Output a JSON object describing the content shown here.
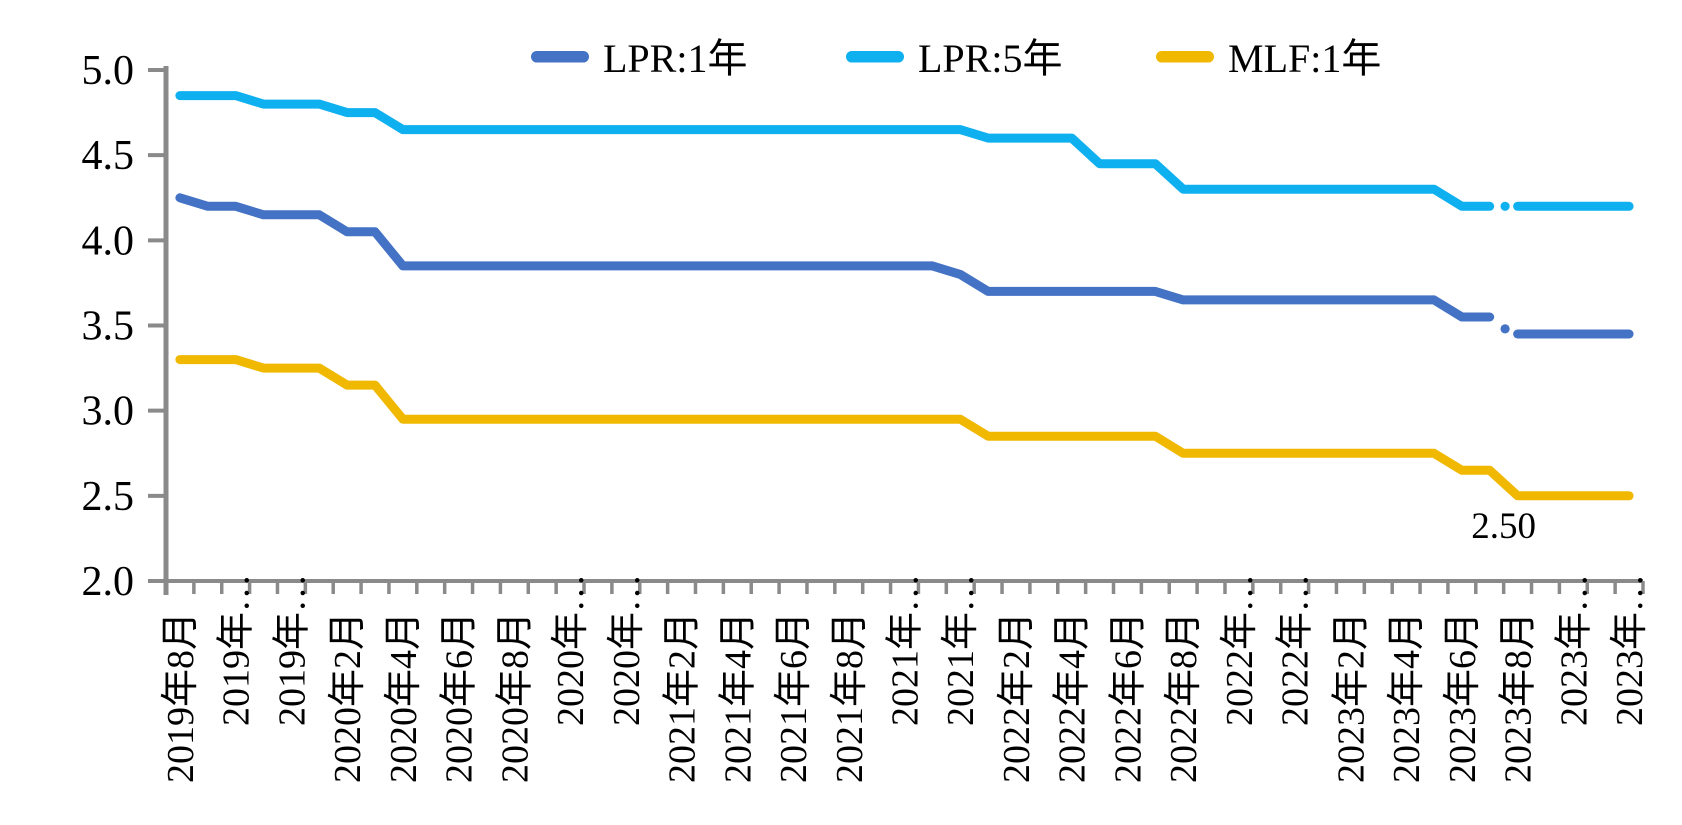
{
  "chart_data": {
    "type": "line",
    "title": "",
    "grid": "off",
    "legend_position": "top-center",
    "ylim": [
      2.0,
      5.0
    ],
    "y_step": 0.5,
    "y_tick_labels": [
      "5.0",
      "4.5",
      "4.0",
      "3.5",
      "3.0",
      "2.5",
      "2.0"
    ],
    "months": [
      "2019-08",
      "2019-09",
      "2019-10",
      "2019-11",
      "2019-12",
      "2020-01",
      "2020-02",
      "2020-03",
      "2020-04",
      "2020-05",
      "2020-06",
      "2020-07",
      "2020-08",
      "2020-09",
      "2020-10",
      "2020-11",
      "2020-12",
      "2021-01",
      "2021-02",
      "2021-03",
      "2021-04",
      "2021-05",
      "2021-06",
      "2021-07",
      "2021-08",
      "2021-09",
      "2021-10",
      "2021-11",
      "2021-12",
      "2022-01",
      "2022-02",
      "2022-03",
      "2022-04",
      "2022-05",
      "2022-06",
      "2022-07",
      "2022-08",
      "2022-09",
      "2022-10",
      "2022-11",
      "2022-12",
      "2023-01",
      "2023-02",
      "2023-03",
      "2023-04",
      "2023-05",
      "2023-06",
      "2023-07",
      "2023-08",
      "2023-09",
      "2023-10",
      "2023-11",
      "2023-12"
    ],
    "x_tick_labels_shown": [
      "2019年8月",
      "2019年…",
      "2019年…",
      "2020年2月",
      "2020年4月",
      "2020年6月",
      "2020年8月",
      "2020年…",
      "2020年…",
      "2021年2月",
      "2021年4月",
      "2021年6月",
      "2021年8月",
      "2021年…",
      "2021年…",
      "2022年2月",
      "2022年4月",
      "2022年6月",
      "2022年8月",
      "2022年…",
      "2022年…",
      "2023年2月",
      "2023年4月",
      "2023年6月",
      "2023年8月",
      "2023年…",
      "2023年…"
    ],
    "series": [
      {
        "name": "LPR:1年",
        "color": "#4472C4",
        "gap_after_index": 47,
        "gap_dot_value": 3.48,
        "values": [
          4.25,
          4.2,
          4.2,
          4.15,
          4.15,
          4.15,
          4.05,
          4.05,
          3.85,
          3.85,
          3.85,
          3.85,
          3.85,
          3.85,
          3.85,
          3.85,
          3.85,
          3.85,
          3.85,
          3.85,
          3.85,
          3.85,
          3.85,
          3.85,
          3.85,
          3.85,
          3.85,
          3.85,
          3.8,
          3.7,
          3.7,
          3.7,
          3.7,
          3.7,
          3.7,
          3.7,
          3.65,
          3.65,
          3.65,
          3.65,
          3.65,
          3.65,
          3.65,
          3.65,
          3.65,
          3.65,
          3.55,
          3.55,
          3.45,
          3.45,
          3.45,
          3.45,
          3.45
        ]
      },
      {
        "name": "LPR:5年",
        "color": "#0FB0F0",
        "gap_after_index": 47,
        "gap_dot_value": 4.2,
        "values": [
          4.85,
          4.85,
          4.85,
          4.8,
          4.8,
          4.8,
          4.75,
          4.75,
          4.65,
          4.65,
          4.65,
          4.65,
          4.65,
          4.65,
          4.65,
          4.65,
          4.65,
          4.65,
          4.65,
          4.65,
          4.65,
          4.65,
          4.65,
          4.65,
          4.65,
          4.65,
          4.65,
          4.65,
          4.65,
          4.6,
          4.6,
          4.6,
          4.6,
          4.45,
          4.45,
          4.45,
          4.3,
          4.3,
          4.3,
          4.3,
          4.3,
          4.3,
          4.3,
          4.3,
          4.3,
          4.3,
          4.2,
          4.2,
          4.2,
          4.2,
          4.2,
          4.2,
          4.2
        ]
      },
      {
        "name": "MLF:1年",
        "color": "#F1B800",
        "gap_after_index": null,
        "gap_dot_value": null,
        "values": [
          3.3,
          3.3,
          3.3,
          3.25,
          3.25,
          3.25,
          3.15,
          3.15,
          2.95,
          2.95,
          2.95,
          2.95,
          2.95,
          2.95,
          2.95,
          2.95,
          2.95,
          2.95,
          2.95,
          2.95,
          2.95,
          2.95,
          2.95,
          2.95,
          2.95,
          2.95,
          2.95,
          2.95,
          2.95,
          2.85,
          2.85,
          2.85,
          2.85,
          2.85,
          2.85,
          2.85,
          2.75,
          2.75,
          2.75,
          2.75,
          2.75,
          2.75,
          2.75,
          2.75,
          2.75,
          2.75,
          2.65,
          2.65,
          2.5,
          2.5,
          2.5,
          2.5,
          2.5
        ]
      }
    ],
    "annotation": {
      "text": "2.50",
      "month": "2023-08",
      "series": "MLF:1年"
    },
    "colors": {
      "axis": "#8A8A8A",
      "text": "#000000"
    }
  }
}
